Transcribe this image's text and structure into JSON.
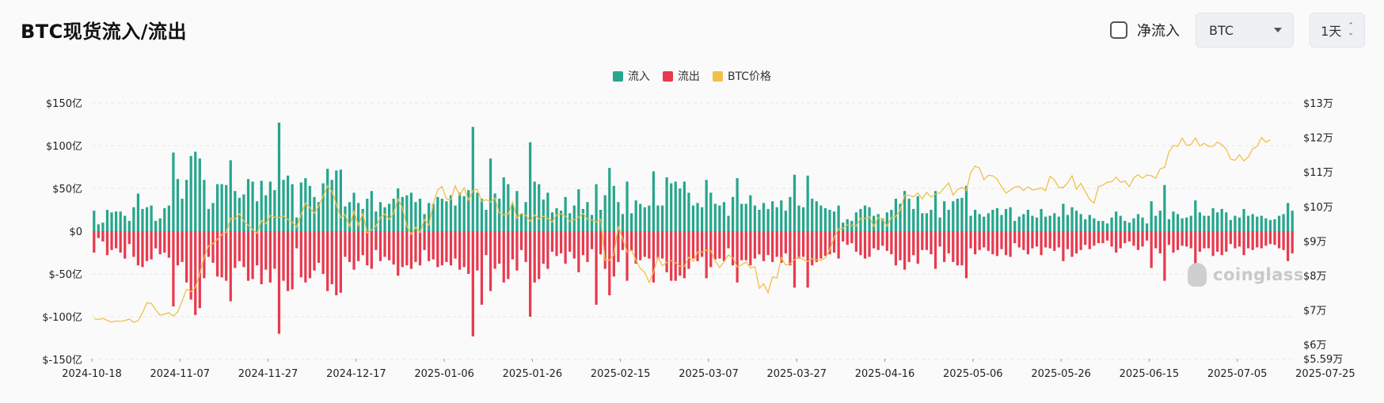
{
  "header": {
    "title": "BTC现货流入/流出",
    "net_inflow_label": "净流入",
    "net_inflow_checked": false,
    "asset_select": "BTC",
    "interval_select": "1天"
  },
  "legend": [
    {
      "label": "流入",
      "color": "#26a68d"
    },
    {
      "label": "流出",
      "color": "#e8394e"
    },
    {
      "label": "BTC价格",
      "color": "#f0c049"
    }
  ],
  "watermark": "coinglass",
  "chart_data": {
    "type": "bar",
    "title": "BTC现货流入/流出",
    "xlabel": "",
    "ylabel": "",
    "x_tick_labels": [
      "2024-10-18",
      "2024-11-07",
      "2024-11-27",
      "2024-12-17",
      "2025-01-06",
      "2025-01-26",
      "2025-02-15",
      "2025-03-07",
      "2025-03-27",
      "2025-04-16",
      "2025-05-06",
      "2025-05-26",
      "2025-06-15",
      "2025-07-05",
      "2025-07-25"
    ],
    "left_axis": {
      "range": [
        -150,
        150
      ],
      "unit": "亿 USD",
      "ticks": [
        150,
        100,
        50,
        0,
        -50,
        -100,
        -150
      ],
      "tick_labels": [
        "$150亿",
        "$100亿",
        "$50亿",
        "$0",
        "$-50亿",
        "$-100亿",
        "$-150亿"
      ]
    },
    "right_axis": {
      "range": [
        55900,
        130000
      ],
      "unit": "USD",
      "ticks": [
        130000,
        120000,
        110000,
        100000,
        90000,
        80000,
        70000,
        60000,
        55900
      ],
      "tick_labels": [
        "$13万",
        "$12万",
        "$11万",
        "$10万",
        "$9万",
        "$8万",
        "$7万",
        "$6万",
        "$5.59万"
      ]
    },
    "grid": true,
    "legend_position": "top-center",
    "series": [
      {
        "name": "流入",
        "type": "bar",
        "color": "#26a68d",
        "values": [
          24,
          8,
          10,
          25,
          22,
          23,
          23,
          18,
          12,
          28,
          44,
          26,
          28,
          30,
          12,
          15,
          27,
          30,
          92,
          61,
          38,
          60,
          88,
          93,
          85,
          60,
          26,
          33,
          55,
          55,
          54,
          83,
          47,
          39,
          43,
          61,
          58,
          35,
          59,
          42,
          58,
          48,
          127,
          60,
          65,
          55,
          16,
          57,
          62,
          53,
          40,
          34,
          56,
          73,
          60,
          71,
          72,
          29,
          34,
          45,
          33,
          26,
          38,
          47,
          23,
          34,
          28,
          32,
          38,
          50,
          40,
          42,
          45,
          34,
          38,
          20,
          33,
          32,
          40,
          38,
          35,
          42,
          30,
          45,
          41,
          48,
          122,
          45,
          38,
          25,
          85,
          44,
          38,
          63,
          55,
          32,
          47,
          20,
          34,
          104,
          58,
          55,
          37,
          45,
          22,
          27,
          24,
          40,
          21,
          30,
          49,
          26,
          34,
          19,
          55,
          25,
          42,
          74,
          53,
          34,
          20,
          58,
          21,
          36,
          32,
          28,
          30,
          70,
          30,
          30,
          63,
          56,
          58,
          50,
          58,
          45,
          30,
          33,
          28,
          60,
          45,
          32,
          30,
          34,
          18,
          40,
          62,
          32,
          32,
          42,
          30,
          25,
          33,
          26,
          35,
          28,
          36,
          24,
          40,
          66,
          30,
          28,
          65,
          38,
          35,
          30,
          27,
          25,
          23,
          30,
          10,
          14,
          12,
          22,
          26,
          30,
          28,
          18,
          20,
          15,
          22,
          25,
          38,
          32,
          47,
          38,
          26,
          41,
          21,
          21,
          25,
          47,
          16,
          35,
          25,
          35,
          38,
          39,
          53,
          18,
          25,
          20,
          17,
          21,
          25,
          27,
          19,
          26,
          28,
          12,
          17,
          20,
          25,
          18,
          16,
          26,
          17,
          18,
          21,
          17,
          32,
          19,
          28,
          24,
          20,
          14,
          19,
          15,
          12,
          12,
          9,
          16,
          23,
          18,
          12,
          10,
          15,
          20,
          16,
          9,
          35,
          18,
          24,
          54,
          14,
          23,
          20,
          15,
          16,
          18,
          36,
          22,
          18,
          18,
          27,
          22,
          26,
          22,
          13,
          18,
          16,
          26,
          18,
          20,
          17,
          18,
          15,
          13,
          14,
          18,
          20,
          33,
          24
        ]
      },
      {
        "name": "流出",
        "type": "bar",
        "color": "#e8394e",
        "values": [
          -25,
          -8,
          -12,
          -28,
          -22,
          -20,
          -25,
          -32,
          -15,
          -30,
          -40,
          -42,
          -35,
          -33,
          -20,
          -27,
          -25,
          -31,
          -88,
          -40,
          -36,
          -60,
          -80,
          -98,
          -90,
          -55,
          -30,
          -37,
          -53,
          -54,
          -58,
          -82,
          -43,
          -35,
          -42,
          -58,
          -56,
          -40,
          -62,
          -45,
          -60,
          -44,
          -120,
          -58,
          -70,
          -68,
          -20,
          -54,
          -60,
          -55,
          -46,
          -37,
          -50,
          -70,
          -62,
          -75,
          -72,
          -30,
          -36,
          -45,
          -35,
          -28,
          -40,
          -44,
          -22,
          -35,
          -30,
          -34,
          -39,
          -52,
          -42,
          -40,
          -44,
          -36,
          -40,
          -22,
          -35,
          -33,
          -42,
          -40,
          -36,
          -40,
          -32,
          -45,
          -42,
          -50,
          -123,
          -46,
          -86,
          -28,
          -70,
          -44,
          -38,
          -60,
          -56,
          -33,
          -46,
          -22,
          -36,
          -100,
          -60,
          -56,
          -38,
          -44,
          -24,
          -29,
          -26,
          -38,
          -24,
          -32,
          -48,
          -28,
          -36,
          -21,
          -86,
          -27,
          -44,
          -75,
          -53,
          -36,
          -22,
          -58,
          -23,
          -38,
          -34,
          -30,
          -32,
          -60,
          -32,
          -32,
          -48,
          -58,
          -58,
          -52,
          -55,
          -44,
          -32,
          -35,
          -30,
          -55,
          -42,
          -33,
          -32,
          -35,
          -20,
          -40,
          -60,
          -34,
          -34,
          -40,
          -32,
          -27,
          -35,
          -28,
          -36,
          -30,
          -37,
          -26,
          -40,
          -66,
          -32,
          -30,
          -66,
          -40,
          -36,
          -32,
          -29,
          -27,
          -25,
          -32,
          -12,
          -16,
          -14,
          -24,
          -28,
          -32,
          -30,
          -20,
          -22,
          -17,
          -23,
          -27,
          -40,
          -34,
          -45,
          -36,
          -28,
          -38,
          -22,
          -22,
          -27,
          -44,
          -18,
          -36,
          -26,
          -36,
          -40,
          -40,
          -55,
          -20,
          -27,
          -22,
          -19,
          -23,
          -27,
          -29,
          -21,
          -28,
          -30,
          -14,
          -19,
          -22,
          -27,
          -20,
          -18,
          -28,
          -19,
          -20,
          -23,
          -19,
          -35,
          -21,
          -30,
          -26,
          -22,
          -16,
          -21,
          -17,
          -14,
          -14,
          -11,
          -18,
          -25,
          -20,
          -14,
          -12,
          -17,
          -22,
          -18,
          -11,
          -43,
          -20,
          -26,
          -58,
          -16,
          -25,
          -22,
          -17,
          -18,
          -20,
          -38,
          -24,
          -20,
          -20,
          -29,
          -24,
          -28,
          -24,
          -15,
          -20,
          -18,
          -28,
          -20,
          -22,
          -19,
          -20,
          -17,
          -15,
          -16,
          -20,
          -22,
          -35,
          -26
        ]
      },
      {
        "name": "BTC价格",
        "type": "line",
        "color": "#f0c049",
        "values": [
          67500,
          67200,
          67600,
          67000,
          66500,
          66800,
          66700,
          66900,
          67400,
          66400,
          66900,
          69200,
          72100,
          71900,
          70100,
          68500,
          68800,
          69200,
          68200,
          69500,
          72600,
          76000,
          75300,
          76500,
          80500,
          85300,
          88600,
          89200,
          90500,
          91800,
          92500,
          96600,
          96400,
          97900,
          95700,
          94600,
          93300,
          92200,
          95900,
          95000,
          97400,
          96900,
          96800,
          97200,
          96200,
          95400,
          94000,
          97700,
          101000,
          99700,
          98000,
          100100,
          102900,
          106000,
          104400,
          100600,
          96800,
          97600,
          94200,
          98600,
          94500,
          98000,
          92300,
          93200,
          94300,
          96800,
          97800,
          96200,
          98000,
          102200,
          99500,
          94400,
          91900,
          94000,
          92400,
          96300,
          94500,
          100800,
          104800,
          105800,
          102200,
          101900,
          106000,
          103200,
          105400,
          101800,
          104600,
          105000,
          101400,
          102000,
          101300,
          102400,
          98100,
          97600,
          97700,
          101300,
          96600,
          98000,
          97500,
          95700,
          97600,
          96400,
          97200,
          96500,
          95500,
          97600,
          97800,
          97200,
          95700,
          96200,
          96800,
          98000,
          96300,
          96100,
          95500,
          96300,
          84400,
          84400,
          86100,
          94300,
          90600,
          86800,
          87300,
          84500,
          82000,
          80900,
          78000,
          81000,
          85300,
          82800,
          83800,
          84300,
          83700,
          82700,
          82600,
          85300,
          84100,
          86800,
          86800,
          87300,
          87200,
          84200,
          82300,
          83900,
          86000,
          85100,
          82500,
          83100,
          83900,
          82100,
          82600,
          76300,
          77600,
          75000,
          79600,
          79200,
          85200,
          83000,
          83400,
          84600,
          85300,
          84600,
          84100,
          84900,
          84500,
          84400,
          85100,
          87500,
          91000,
          93500,
          93700,
          94700,
          94500,
          94300,
          96600,
          96500,
          97000,
          94200,
          96800,
          96200,
          94300,
          96800,
          97100,
          99000,
          103300,
          103200,
          102800,
          103900,
          102200,
          104100,
          102700,
          103600,
          103900,
          105400,
          106800,
          103300,
          104900,
          105600,
          104600,
          109800,
          111700,
          111100,
          107800,
          109000,
          108900,
          107900,
          105700,
          103900,
          104700,
          105600,
          105800,
          104600,
          105700,
          104800,
          105000,
          105400,
          104600,
          108700,
          107700,
          105500,
          105500,
          106800,
          108900,
          105000,
          106700,
          104400,
          102000,
          101000,
          105800,
          106200,
          107000,
          107200,
          108500,
          107000,
          107400,
          105700,
          108300,
          109200,
          108200,
          109100,
          108900,
          108200,
          110900,
          111300,
          115800,
          117700,
          117400,
          119800,
          117700,
          117900,
          119900,
          117500,
          118300,
          117400,
          117400,
          118700,
          117900,
          116600,
          113700,
          113400,
          115000,
          113200,
          114300,
          116700,
          117400,
          120000,
          118600,
          119300
        ]
      }
    ]
  }
}
